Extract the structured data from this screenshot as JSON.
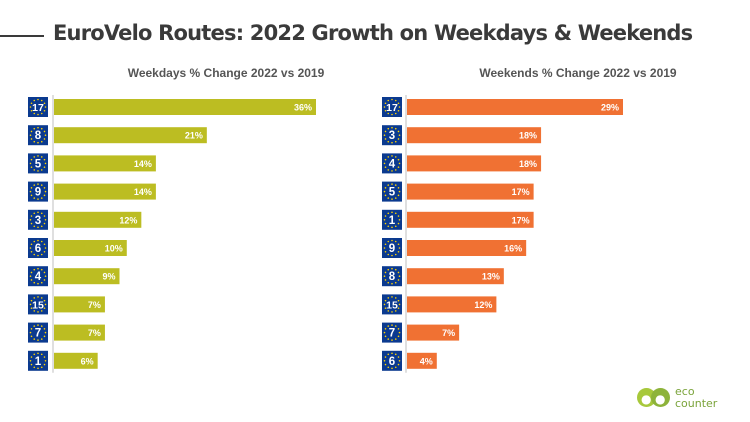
{
  "title": "EuroVelo Routes: 2022 Growth on Weekdays & Weekends",
  "colors": {
    "weekdays_bar": "#bcbd22",
    "weekends_bar": "#f07133",
    "badge_bg": "#0b3a8f",
    "badge_star": "#ffd400",
    "badge_text": "#ffffff",
    "axis": "#bfbfbf",
    "title_text": "#3a3a3a"
  },
  "logo": {
    "line1": "eco",
    "line2": "counter"
  },
  "chart_data": [
    {
      "type": "bar",
      "orientation": "horizontal",
      "title": "Weekdays % Change 2022 vs 2019",
      "categories": [
        "17",
        "8",
        "5",
        "9",
        "3",
        "6",
        "4",
        "15",
        "7",
        "1"
      ],
      "values": [
        36,
        21,
        14,
        14,
        12,
        10,
        9,
        7,
        7,
        6
      ],
      "labels": [
        "36%",
        "21%",
        "14%",
        "14%",
        "12%",
        "10%",
        "9%",
        "7%",
        "7%",
        "6%"
      ],
      "xlim": [
        0,
        36
      ],
      "grid": false
    },
    {
      "type": "bar",
      "orientation": "horizontal",
      "title": "Weekends % Change 2022 vs 2019",
      "categories": [
        "17",
        "3",
        "4",
        "5",
        "1",
        "9",
        "8",
        "15",
        "7",
        "6"
      ],
      "values": [
        29,
        18,
        18,
        17,
        17,
        16,
        13,
        12,
        7,
        4
      ],
      "labels": [
        "29%",
        "18%",
        "18%",
        "17%",
        "17%",
        "16%",
        "13%",
        "12%",
        "7%",
        "4%"
      ],
      "xlim": [
        0,
        29
      ],
      "grid": false
    }
  ]
}
